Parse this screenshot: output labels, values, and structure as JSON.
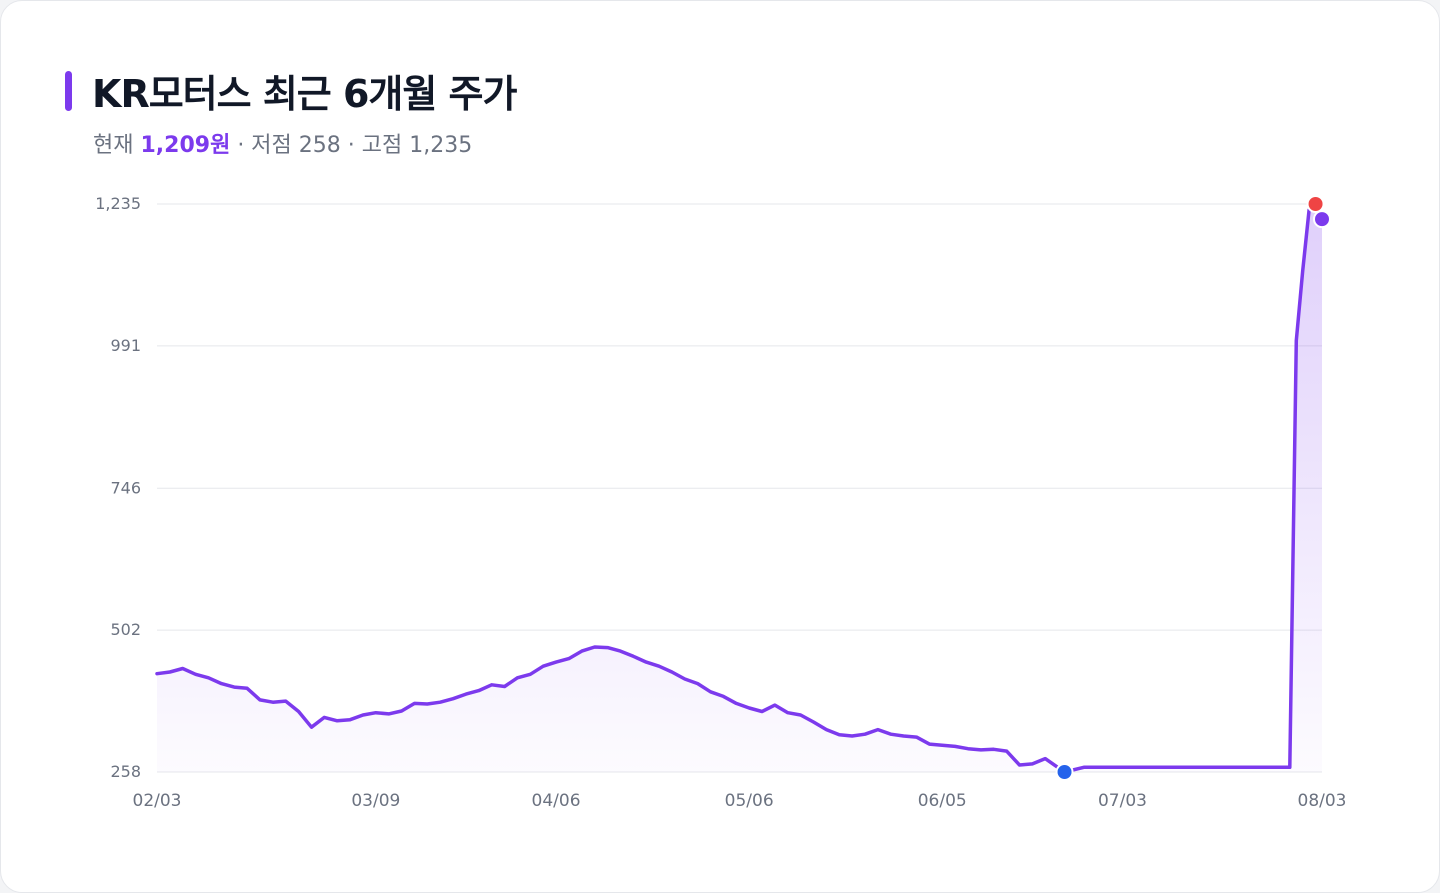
{
  "header": {
    "title": "KR모터스 최근 6개월 주가",
    "current_label": "현재",
    "current_value": "1,209원",
    "low_text": "· 저점 258",
    "high_text": "· 고점 1,235"
  },
  "colors": {
    "accent": "#7c3aed",
    "low_marker": "#2563eb",
    "high_marker": "#ef4444",
    "grid": "#e5e7eb",
    "tick_text": "#6b7280"
  },
  "chart_data": {
    "type": "area",
    "title": "KR모터스 최근 6개월 주가",
    "xlabel": "",
    "ylabel": "",
    "ylim": [
      258,
      1235
    ],
    "yticks": [
      258,
      502,
      746,
      991,
      1235
    ],
    "ytick_labels": [
      "258",
      "502",
      "746",
      "991",
      "1,235"
    ],
    "xtick_labels": [
      "02/03",
      "03/09",
      "04/06",
      "05/06",
      "06/05",
      "07/03",
      "08/03"
    ],
    "xlim": [
      "2025-02-03",
      "2025-08-03"
    ],
    "xtick_dates": [
      "2025-02-03",
      "2025-03-09",
      "2025-04-06",
      "2025-05-06",
      "2025-06-05",
      "2025-07-03",
      "2025-08-03"
    ],
    "grid": true,
    "legend": "none",
    "series": [
      {
        "x": [
          "2025-02-03",
          "2025-02-05",
          "2025-02-07",
          "2025-02-09",
          "2025-02-11",
          "2025-02-13",
          "2025-02-15",
          "2025-02-17",
          "2025-02-19",
          "2025-02-21",
          "2025-02-23",
          "2025-02-25",
          "2025-02-27",
          "2025-03-01",
          "2025-03-03",
          "2025-03-05",
          "2025-03-07",
          "2025-03-09",
          "2025-03-11",
          "2025-03-13",
          "2025-03-15",
          "2025-03-17",
          "2025-03-19",
          "2025-03-21",
          "2025-03-23",
          "2025-03-25",
          "2025-03-27",
          "2025-03-29",
          "2025-03-31",
          "2025-04-02",
          "2025-04-04",
          "2025-04-06",
          "2025-04-08",
          "2025-04-10",
          "2025-04-12",
          "2025-04-14",
          "2025-04-16",
          "2025-04-18",
          "2025-04-20",
          "2025-04-22",
          "2025-04-24",
          "2025-04-26",
          "2025-04-28",
          "2025-04-30",
          "2025-05-02",
          "2025-05-04",
          "2025-05-06",
          "2025-05-08",
          "2025-05-10",
          "2025-05-12",
          "2025-05-14",
          "2025-05-16",
          "2025-05-18",
          "2025-05-20",
          "2025-05-22",
          "2025-05-24",
          "2025-05-26",
          "2025-05-28",
          "2025-05-30",
          "2025-06-01",
          "2025-06-03",
          "2025-06-05",
          "2025-06-07",
          "2025-06-09",
          "2025-06-11",
          "2025-06-13",
          "2025-06-15",
          "2025-06-17",
          "2025-06-19",
          "2025-06-21",
          "2025-06-24",
          "2025-06-27",
          "2025-07-03",
          "2025-07-10",
          "2025-07-20",
          "2025-07-28",
          "2025-07-29",
          "2025-07-30",
          "2025-07-31",
          "2025-08-01",
          "2025-08-02",
          "2025-08-03"
        ],
        "values": [
          427,
          430,
          436,
          426,
          420,
          410,
          404,
          402,
          382,
          378,
          380,
          362,
          335,
          352,
          346,
          348,
          356,
          360,
          358,
          363,
          376,
          375,
          378,
          384,
          392,
          398,
          408,
          405,
          420,
          426,
          440,
          447,
          453,
          466,
          473,
          472,
          466,
          457,
          447,
          440,
          430,
          418,
          410,
          396,
          388,
          376,
          368,
          362,
          373,
          360,
          356,
          344,
          331,
          322,
          320,
          323,
          331,
          323,
          320,
          318,
          306,
          304,
          302,
          298,
          296,
          297,
          294,
          270,
          272,
          281,
          258,
          266,
          266,
          266,
          266,
          266,
          266,
          1000,
          1120,
          1225,
          1235,
          1209
        ]
      }
    ],
    "markers": [
      {
        "label": "low",
        "date": "2025-06-24",
        "value": 258
      },
      {
        "label": "high",
        "date": "2025-08-02",
        "value": 1235
      },
      {
        "label": "current",
        "date": "2025-08-03",
        "value": 1209
      }
    ]
  }
}
